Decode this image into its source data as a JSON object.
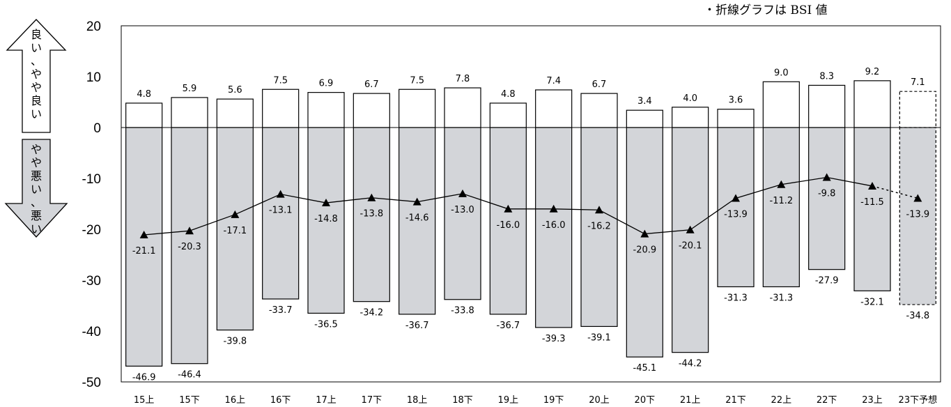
{
  "note": "・折線グラフは BSI 値",
  "arrows": {
    "up_label": "良い、やや良い",
    "down_label": "やや悪い、悪い"
  },
  "colors": {
    "positive_bar": "#ffffff",
    "negative_bar": "#d3d5d9",
    "line": "#000000"
  },
  "chart_data": {
    "type": "bar",
    "categories": [
      "15上",
      "15下",
      "16上",
      "16下",
      "17上",
      "17下",
      "18上",
      "18下",
      "19上",
      "19下",
      "20上",
      "20下",
      "21上",
      "21下",
      "22上",
      "22下",
      "23上",
      "23下予想"
    ],
    "series": [
      {
        "values": [
          4.8,
          5.9,
          5.6,
          7.5,
          6.9,
          6.7,
          7.5,
          7.8,
          4.8,
          7.4,
          6.7,
          3.4,
          4.0,
          3.6,
          9.0,
          8.3,
          9.2,
          7.1
        ]
      },
      {
        "values": [
          -46.9,
          -46.4,
          -39.8,
          -33.7,
          -36.5,
          -34.2,
          -36.7,
          -33.8,
          -36.7,
          -39.3,
          -39.1,
          -45.1,
          -44.2,
          -31.3,
          -31.3,
          -27.9,
          -32.1,
          -34.8
        ]
      },
      {
        "type": "line",
        "values": [
          -21.1,
          -20.3,
          -17.1,
          -13.1,
          -14.8,
          -13.8,
          -14.6,
          -13.0,
          -16.0,
          -16.0,
          -16.2,
          -20.9,
          -20.1,
          -13.9,
          -11.2,
          -9.8,
          -11.5,
          -13.9
        ]
      }
    ],
    "forecast_last_category": true,
    "ylim": [
      -50,
      20
    ],
    "yticks": [
      20,
      10,
      0,
      -10,
      -20,
      -30,
      -40,
      -50
    ],
    "grid": false
  }
}
